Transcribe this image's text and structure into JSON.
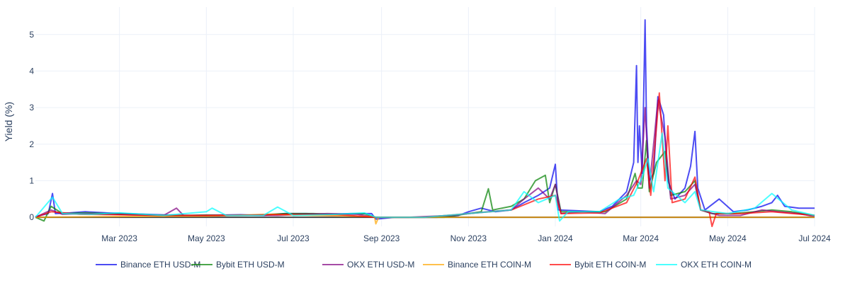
{
  "chart_data": {
    "type": "line",
    "title": "",
    "xlabel": "",
    "ylabel": "Yield (%)",
    "x_range": [
      "2023-01-01",
      "2024-07-01"
    ],
    "ylim": [
      -0.25,
      5.75
    ],
    "grid": true,
    "legend_position": "bottom-center",
    "x_ticks": [
      {
        "date": "2023-03-01",
        "label": "Mar 2023"
      },
      {
        "date": "2023-05-01",
        "label": "May 2023"
      },
      {
        "date": "2023-07-01",
        "label": "Jul 2023"
      },
      {
        "date": "2023-09-01",
        "label": "Sep 2023"
      },
      {
        "date": "2023-11-01",
        "label": "Nov 2023"
      },
      {
        "date": "2024-01-01",
        "label": "Jan 2024"
      },
      {
        "date": "2024-03-01",
        "label": "Mar 2024"
      },
      {
        "date": "2024-05-01",
        "label": "May 2024"
      },
      {
        "date": "2024-07-01",
        "label": "Jul 2024"
      }
    ],
    "y_ticks": [
      0,
      1,
      2,
      3,
      4,
      5
    ],
    "series": [
      {
        "name": "Binance ETH USD-M",
        "color": "#0000ee",
        "points": [
          [
            "2023-01-01",
            0.02
          ],
          [
            "2023-01-10",
            0.1
          ],
          [
            "2023-01-13",
            0.65
          ],
          [
            "2023-01-15",
            0.1
          ],
          [
            "2023-01-25",
            0.12
          ],
          [
            "2023-02-05",
            0.15
          ],
          [
            "2023-02-20",
            0.12
          ],
          [
            "2023-03-05",
            0.1
          ],
          [
            "2023-03-20",
            0.08
          ],
          [
            "2023-04-05",
            0.06
          ],
          [
            "2023-04-20",
            0.05
          ],
          [
            "2023-05-10",
            0.06
          ],
          [
            "2023-05-25",
            0.07
          ],
          [
            "2023-06-10",
            0.05
          ],
          [
            "2023-06-25",
            0.1
          ],
          [
            "2023-07-10",
            0.1
          ],
          [
            "2023-07-25",
            0.08
          ],
          [
            "2023-08-10",
            0.1
          ],
          [
            "2023-08-25",
            0.1
          ],
          [
            "2023-08-28",
            -0.05
          ],
          [
            "2023-09-10",
            0.0
          ],
          [
            "2023-09-25",
            0.0
          ],
          [
            "2023-10-10",
            0.0
          ],
          [
            "2023-10-25",
            0.05
          ],
          [
            "2023-11-01",
            0.15
          ],
          [
            "2023-11-10",
            0.25
          ],
          [
            "2023-11-20",
            0.15
          ],
          [
            "2023-12-01",
            0.2
          ],
          [
            "2023-12-10",
            0.4
          ],
          [
            "2023-12-20",
            0.6
          ],
          [
            "2023-12-28",
            0.8
          ],
          [
            "2024-01-01",
            1.45
          ],
          [
            "2024-01-03",
            0.2
          ],
          [
            "2024-01-15",
            0.18
          ],
          [
            "2024-02-01",
            0.15
          ],
          [
            "2024-02-10",
            0.3
          ],
          [
            "2024-02-20",
            0.7
          ],
          [
            "2024-02-25",
            1.5
          ],
          [
            "2024-02-27",
            4.15
          ],
          [
            "2024-02-28",
            1.5
          ],
          [
            "2024-02-29",
            2.5
          ],
          [
            "2024-03-02",
            1.2
          ],
          [
            "2024-03-04",
            5.4
          ],
          [
            "2024-03-05",
            2.5
          ],
          [
            "2024-03-07",
            1.0
          ],
          [
            "2024-03-10",
            1.2
          ],
          [
            "2024-03-13",
            3.3
          ],
          [
            "2024-03-17",
            2.8
          ],
          [
            "2024-03-20",
            1.0
          ],
          [
            "2024-03-25",
            0.5
          ],
          [
            "2024-04-01",
            0.8
          ],
          [
            "2024-04-05",
            1.4
          ],
          [
            "2024-04-08",
            2.35
          ],
          [
            "2024-04-10",
            0.8
          ],
          [
            "2024-04-15",
            0.2
          ],
          [
            "2024-04-25",
            0.5
          ],
          [
            "2024-05-05",
            0.15
          ],
          [
            "2024-05-15",
            0.2
          ],
          [
            "2024-05-25",
            0.3
          ],
          [
            "2024-06-01",
            0.4
          ],
          [
            "2024-06-05",
            0.6
          ],
          [
            "2024-06-10",
            0.3
          ],
          [
            "2024-06-20",
            0.25
          ],
          [
            "2024-07-01",
            0.25
          ]
        ]
      },
      {
        "name": "Bybit ETH USD-M",
        "color": "#008000",
        "points": [
          [
            "2023-01-01",
            0.0
          ],
          [
            "2023-01-07",
            -0.1
          ],
          [
            "2023-01-12",
            0.3
          ],
          [
            "2023-01-20",
            0.1
          ],
          [
            "2023-02-05",
            0.12
          ],
          [
            "2023-02-20",
            0.1
          ],
          [
            "2023-03-10",
            0.08
          ],
          [
            "2023-03-25",
            0.06
          ],
          [
            "2023-04-10",
            0.05
          ],
          [
            "2023-05-01",
            0.06
          ],
          [
            "2023-05-20",
            0.05
          ],
          [
            "2023-06-10",
            0.07
          ],
          [
            "2023-06-25",
            0.1
          ],
          [
            "2023-07-15",
            0.1
          ],
          [
            "2023-08-01",
            0.08
          ],
          [
            "2023-08-20",
            0.1
          ],
          [
            "2023-08-28",
            0.0
          ],
          [
            "2023-09-15",
            0.0
          ],
          [
            "2023-10-15",
            0.0
          ],
          [
            "2023-11-01",
            0.1
          ],
          [
            "2023-11-10",
            0.15
          ],
          [
            "2023-11-15",
            0.78
          ],
          [
            "2023-11-18",
            0.2
          ],
          [
            "2023-12-01",
            0.3
          ],
          [
            "2023-12-10",
            0.5
          ],
          [
            "2023-12-18",
            1.0
          ],
          [
            "2023-12-25",
            1.15
          ],
          [
            "2023-12-28",
            0.4
          ],
          [
            "2024-01-01",
            0.9
          ],
          [
            "2024-01-05",
            0.15
          ],
          [
            "2024-01-20",
            0.15
          ],
          [
            "2024-02-05",
            0.15
          ],
          [
            "2024-02-20",
            0.5
          ],
          [
            "2024-02-26",
            1.2
          ],
          [
            "2024-02-28",
            0.8
          ],
          [
            "2024-03-02",
            0.8
          ],
          [
            "2024-03-05",
            2.1
          ],
          [
            "2024-03-07",
            0.7
          ],
          [
            "2024-03-12",
            1.5
          ],
          [
            "2024-03-18",
            1.8
          ],
          [
            "2024-03-22",
            0.6
          ],
          [
            "2024-04-01",
            0.7
          ],
          [
            "2024-04-08",
            1.0
          ],
          [
            "2024-04-12",
            0.2
          ],
          [
            "2024-04-20",
            0.1
          ],
          [
            "2024-05-05",
            0.1
          ],
          [
            "2024-05-20",
            0.15
          ],
          [
            "2024-06-01",
            0.2
          ],
          [
            "2024-06-15",
            0.15
          ],
          [
            "2024-07-01",
            0.05
          ]
        ]
      },
      {
        "name": "OKX ETH USD-M",
        "color": "#800080",
        "points": [
          [
            "2023-01-01",
            0.0
          ],
          [
            "2023-01-12",
            0.2
          ],
          [
            "2023-01-20",
            0.08
          ],
          [
            "2023-02-05",
            0.1
          ],
          [
            "2023-02-20",
            0.08
          ],
          [
            "2023-03-15",
            0.06
          ],
          [
            "2023-04-01",
            0.05
          ],
          [
            "2023-04-10",
            0.25
          ],
          [
            "2023-04-15",
            0.05
          ],
          [
            "2023-05-10",
            0.05
          ],
          [
            "2023-06-01",
            0.06
          ],
          [
            "2023-06-20",
            0.05
          ],
          [
            "2023-07-10",
            0.08
          ],
          [
            "2023-07-25",
            0.1
          ],
          [
            "2023-08-15",
            0.08
          ],
          [
            "2023-08-28",
            0.0
          ],
          [
            "2023-09-20",
            0.0
          ],
          [
            "2023-10-20",
            0.05
          ],
          [
            "2023-11-01",
            0.1
          ],
          [
            "2023-11-15",
            0.15
          ],
          [
            "2023-12-01",
            0.2
          ],
          [
            "2023-12-10",
            0.5
          ],
          [
            "2023-12-20",
            0.8
          ],
          [
            "2023-12-28",
            0.5
          ],
          [
            "2024-01-01",
            0.9
          ],
          [
            "2024-01-05",
            0.1
          ],
          [
            "2024-01-20",
            0.15
          ],
          [
            "2024-02-05",
            0.1
          ],
          [
            "2024-02-20",
            0.6
          ],
          [
            "2024-02-27",
            1.0
          ],
          [
            "2024-03-01",
            0.9
          ],
          [
            "2024-03-04",
            3.0
          ],
          [
            "2024-03-07",
            0.8
          ],
          [
            "2024-03-13",
            3.2
          ],
          [
            "2024-03-18",
            2.2
          ],
          [
            "2024-03-22",
            0.5
          ],
          [
            "2024-04-01",
            0.6
          ],
          [
            "2024-04-08",
            0.9
          ],
          [
            "2024-04-12",
            0.2
          ],
          [
            "2024-04-25",
            0.05
          ],
          [
            "2024-05-10",
            0.05
          ],
          [
            "2024-05-25",
            0.2
          ],
          [
            "2024-06-05",
            0.15
          ],
          [
            "2024-06-20",
            0.1
          ],
          [
            "2024-07-01",
            0.02
          ]
        ]
      },
      {
        "name": "Binance ETH COIN-M",
        "color": "#ffa500",
        "points": [
          [
            "2023-01-01",
            0.0
          ],
          [
            "2023-03-01",
            0.02
          ],
          [
            "2023-05-01",
            0.03
          ],
          [
            "2023-06-15",
            0.08
          ],
          [
            "2023-07-15",
            0.05
          ],
          [
            "2023-08-27",
            0.02
          ],
          [
            "2023-08-28",
            -0.18
          ],
          [
            "2023-08-30",
            0.0
          ],
          [
            "2023-10-01",
            0.0
          ],
          [
            "2023-11-01",
            0.0
          ],
          [
            "2024-01-01",
            0.0
          ],
          [
            "2024-03-01",
            0.0
          ],
          [
            "2024-05-01",
            0.0
          ],
          [
            "2024-07-01",
            0.0
          ]
        ]
      },
      {
        "name": "Bybit ETH COIN-M",
        "color": "#ff0000",
        "points": [
          [
            "2023-01-01",
            0.0
          ],
          [
            "2023-01-12",
            0.15
          ],
          [
            "2023-02-01",
            0.08
          ],
          [
            "2023-03-01",
            0.07
          ],
          [
            "2023-04-01",
            0.05
          ],
          [
            "2023-05-01",
            0.05
          ],
          [
            "2023-06-01",
            0.06
          ],
          [
            "2023-07-01",
            0.08
          ],
          [
            "2023-08-01",
            0.07
          ],
          [
            "2023-08-28",
            0.0
          ],
          [
            "2023-10-01",
            0.0
          ],
          [
            "2023-11-01",
            0.1
          ],
          [
            "2023-12-01",
            0.2
          ],
          [
            "2023-12-20",
            0.5
          ],
          [
            "2024-01-01",
            0.6
          ],
          [
            "2024-01-05",
            0.1
          ],
          [
            "2024-02-01",
            0.12
          ],
          [
            "2024-02-20",
            0.4
          ],
          [
            "2024-02-28",
            1.0
          ],
          [
            "2024-03-05",
            1.6
          ],
          [
            "2024-03-08",
            0.6
          ],
          [
            "2024-03-14",
            3.4
          ],
          [
            "2024-03-18",
            1.0
          ],
          [
            "2024-03-20",
            2.5
          ],
          [
            "2024-03-23",
            0.4
          ],
          [
            "2024-04-01",
            0.5
          ],
          [
            "2024-04-08",
            1.1
          ],
          [
            "2024-04-12",
            0.2
          ],
          [
            "2024-04-18",
            0.15
          ],
          [
            "2024-04-20",
            -0.25
          ],
          [
            "2024-04-23",
            0.1
          ],
          [
            "2024-05-10",
            0.1
          ],
          [
            "2024-06-01",
            0.15
          ],
          [
            "2024-07-01",
            0.05
          ]
        ]
      },
      {
        "name": "OKX ETH COIN-M",
        "color": "#00ffff",
        "points": [
          [
            "2023-01-01",
            0.0
          ],
          [
            "2023-01-13",
            0.55
          ],
          [
            "2023-01-20",
            0.1
          ],
          [
            "2023-02-10",
            0.08
          ],
          [
            "2023-03-01",
            0.12
          ],
          [
            "2023-04-01",
            0.05
          ],
          [
            "2023-05-01",
            0.15
          ],
          [
            "2023-05-05",
            0.25
          ],
          [
            "2023-05-15",
            0.05
          ],
          [
            "2023-06-10",
            0.05
          ],
          [
            "2023-06-20",
            0.28
          ],
          [
            "2023-07-01",
            0.05
          ],
          [
            "2023-08-01",
            0.08
          ],
          [
            "2023-08-20",
            0.12
          ],
          [
            "2023-08-28",
            0.0
          ],
          [
            "2023-10-01",
            0.0
          ],
          [
            "2023-11-01",
            0.1
          ],
          [
            "2023-12-01",
            0.2
          ],
          [
            "2023-12-10",
            0.7
          ],
          [
            "2023-12-20",
            0.4
          ],
          [
            "2024-01-01",
            0.6
          ],
          [
            "2024-01-04",
            -0.1
          ],
          [
            "2024-01-10",
            0.15
          ],
          [
            "2024-02-01",
            0.15
          ],
          [
            "2024-02-15",
            0.5
          ],
          [
            "2024-02-25",
            0.6
          ],
          [
            "2024-03-02",
            1.1
          ],
          [
            "2024-03-06",
            1.6
          ],
          [
            "2024-03-10",
            0.7
          ],
          [
            "2024-03-16",
            2.3
          ],
          [
            "2024-03-20",
            0.8
          ],
          [
            "2024-04-01",
            0.4
          ],
          [
            "2024-04-08",
            0.7
          ],
          [
            "2024-04-12",
            0.2
          ],
          [
            "2024-05-01",
            0.1
          ],
          [
            "2024-05-20",
            0.25
          ],
          [
            "2024-06-01",
            0.65
          ],
          [
            "2024-06-15",
            0.2
          ],
          [
            "2024-07-01",
            0.05
          ]
        ]
      }
    ]
  }
}
